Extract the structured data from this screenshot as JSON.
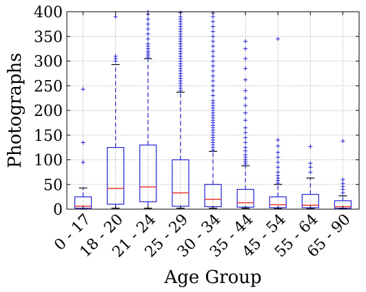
{
  "chart_data": {
    "type": "box",
    "xlabel": "Age Group",
    "ylabel": "Photographs",
    "ylim": [
      0,
      400
    ],
    "yticks": [
      0,
      50,
      100,
      150,
      200,
      250,
      300,
      350,
      400
    ],
    "grid": true,
    "colors": {
      "box": "#1f1fd6",
      "median": "#e8261d",
      "flier": "#1f1fd6",
      "grid": "#9a9a9a",
      "axis": "#000000"
    },
    "categories": [
      "0 - 17",
      "18 - 20",
      "21 - 24",
      "25 - 29",
      "30 - 34",
      "35 - 44",
      "45 - 54",
      "55 - 64",
      "65 - 90"
    ],
    "boxes": [
      {
        "whisker_low": 0,
        "q1": 2,
        "median": 6,
        "q3": 25,
        "whisker_high": 43,
        "outliers": [
          95,
          135,
          243
        ]
      },
      {
        "whisker_low": 2,
        "q1": 10,
        "median": 42,
        "q3": 125,
        "whisker_high": 293,
        "outliers": [
          300,
          305,
          310,
          390
        ]
      },
      {
        "whisker_low": 2,
        "q1": 15,
        "median": 45,
        "q3": 130,
        "whisker_high": 305,
        "outliers": [
          308,
          312,
          316,
          320,
          325,
          330,
          335,
          345,
          355,
          365,
          375,
          385,
          395,
          400
        ]
      },
      {
        "whisker_low": 2,
        "q1": 6,
        "median": 33,
        "q3": 100,
        "whisker_high": 237,
        "outliers": [
          240,
          245,
          250,
          255,
          260,
          265,
          270,
          275,
          280,
          285,
          290,
          295,
          300,
          305,
          310,
          315,
          320,
          325,
          330,
          335,
          340,
          345,
          350,
          355,
          360,
          365,
          370,
          375,
          380,
          385,
          390,
          398
        ]
      },
      {
        "whisker_low": 2,
        "q1": 5,
        "median": 20,
        "q3": 50,
        "whisker_high": 117,
        "outliers": [
          120,
          125,
          130,
          135,
          140,
          145,
          150,
          155,
          160,
          165,
          170,
          175,
          180,
          185,
          190,
          195,
          200,
          205,
          210,
          215,
          220,
          230,
          240,
          250,
          260,
          270,
          280,
          290,
          300,
          310,
          320,
          330,
          340,
          350,
          360,
          370,
          380,
          390,
          397
        ]
      },
      {
        "whisker_low": 2,
        "q1": 4,
        "median": 13,
        "q3": 40,
        "whisker_high": 88,
        "outliers": [
          92,
          96,
          100,
          105,
          110,
          118,
          125,
          135,
          145,
          155,
          165,
          180,
          195,
          210,
          225,
          240,
          262,
          285,
          305,
          325,
          340
        ]
      },
      {
        "whisker_low": 1,
        "q1": 3,
        "median": 9,
        "q3": 25,
        "whisker_high": 50,
        "outliers": [
          53,
          58,
          63,
          68,
          75,
          85,
          95,
          105,
          115,
          128,
          140,
          345
        ]
      },
      {
        "whisker_low": 1,
        "q1": 3,
        "median": 8,
        "q3": 30,
        "whisker_high": 63,
        "outliers": [
          75,
          85,
          93,
          127
        ]
      },
      {
        "whisker_low": 1,
        "q1": 2,
        "median": 5,
        "q3": 17,
        "whisker_high": 27,
        "outliers": [
          33,
          40,
          46,
          52,
          60,
          138
        ]
      }
    ]
  }
}
